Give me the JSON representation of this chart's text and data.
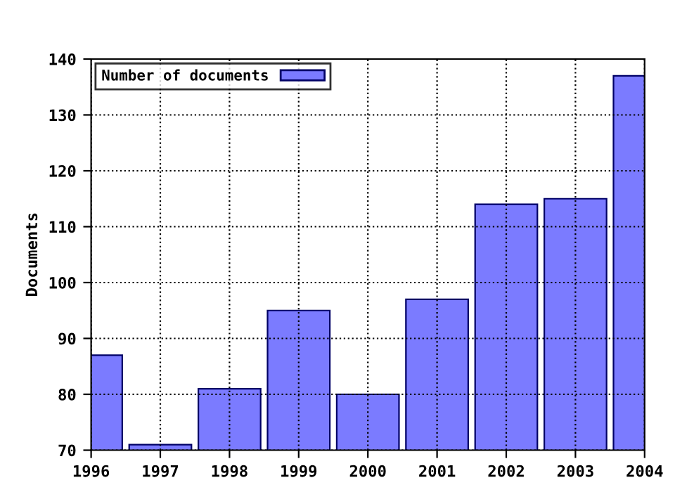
{
  "chart_data": {
    "type": "bar",
    "ylabel": "Documents",
    "x": [
      1996,
      1997,
      1998,
      1999,
      2000,
      2001,
      2002,
      2003,
      2004
    ],
    "series": [
      {
        "name": "Number of documents",
        "color": "#7b7bff",
        "values": [
          87,
          71,
          81,
          95,
          80,
          97,
          114,
          115,
          137
        ]
      }
    ],
    "xlim": [
      1996,
      2004
    ],
    "xticks": [
      1996,
      1997,
      1998,
      1999,
      2000,
      2001,
      2002,
      2003,
      2004
    ],
    "ylim": [
      70,
      140
    ],
    "yticks": [
      70,
      80,
      90,
      100,
      110,
      120,
      130,
      140
    ],
    "grid": true,
    "legend": "top left"
  }
}
